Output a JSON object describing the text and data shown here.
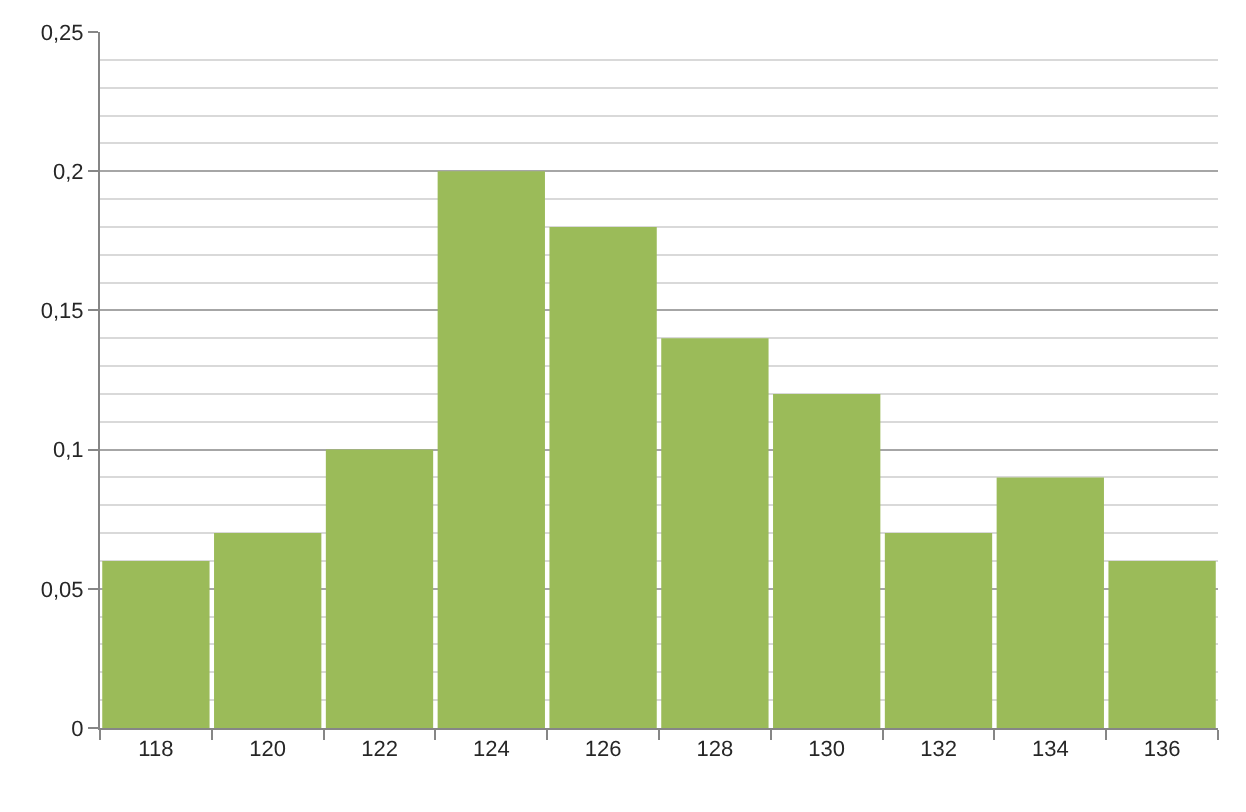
{
  "chart_data": {
    "type": "bar",
    "categories": [
      "118",
      "120",
      "122",
      "124",
      "126",
      "128",
      "130",
      "132",
      "134",
      "136"
    ],
    "values": [
      0.06,
      0.07,
      0.1,
      0.2,
      0.18,
      0.14,
      0.12,
      0.07,
      0.09,
      0.06
    ],
    "color": "#9bbb59",
    "ylim": [
      0,
      0.25
    ],
    "yticks": [
      0,
      {
        "value": 0.01,
        "label": null
      },
      {
        "value": 0.02,
        "label": null
      },
      {
        "value": 0.03,
        "label": null
      },
      {
        "value": 0.04,
        "label": null
      },
      {
        "value": 0.05,
        "label": "0,05"
      },
      {
        "value": 0.06,
        "label": null
      },
      {
        "value": 0.07,
        "label": null
      },
      {
        "value": 0.08,
        "label": null
      },
      {
        "value": 0.09,
        "label": null
      },
      {
        "value": 0.1,
        "label": "0,1"
      },
      {
        "value": 0.11,
        "label": null
      },
      {
        "value": 0.12,
        "label": null
      },
      {
        "value": 0.13,
        "label": null
      },
      {
        "value": 0.14,
        "label": null
      },
      {
        "value": 0.15,
        "label": "0,15"
      },
      {
        "value": 0.16,
        "label": null
      },
      {
        "value": 0.17,
        "label": null
      },
      {
        "value": 0.18,
        "label": null
      },
      {
        "value": 0.19,
        "label": null
      },
      {
        "value": 0.2,
        "label": "0,2"
      },
      {
        "value": 0.21,
        "label": null
      },
      {
        "value": 0.22,
        "label": null
      },
      {
        "value": 0.23,
        "label": null
      },
      {
        "value": 0.24,
        "label": null
      },
      {
        "value": 0.25,
        "label": "0,25"
      }
    ],
    "grid": "y"
  }
}
